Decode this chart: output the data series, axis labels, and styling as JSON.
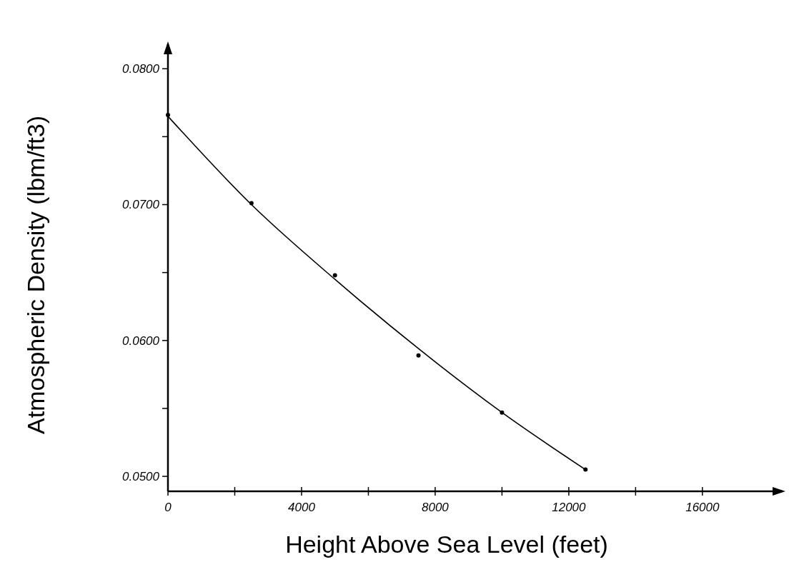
{
  "chart_data": {
    "type": "scatter",
    "xlabel": "Height Above Sea Level (feet)",
    "ylabel": "Atmospheric Density (lbm/ft3)",
    "xlim": [
      0,
      18400
    ],
    "ylim": [
      0.0489,
      0.0818
    ],
    "xticks": [
      0,
      {
        "value": 2000,
        "label": null
      },
      4000,
      {
        "value": 6000,
        "label": null
      },
      8000,
      {
        "value": 10000,
        "label": null
      },
      12000,
      {
        "value": 14000,
        "label": null
      },
      16000
    ],
    "yticks": [
      {
        "value": 0.05,
        "label": "0.0500"
      },
      {
        "value": 0.055,
        "label": null
      },
      {
        "value": 0.06,
        "label": "0.0600"
      },
      {
        "value": 0.065,
        "label": null
      },
      {
        "value": 0.07,
        "label": "0.0700"
      },
      {
        "value": 0.075,
        "label": null
      },
      {
        "value": 0.08,
        "label": "0.0800"
      }
    ],
    "grid": false,
    "marker": "circle",
    "series": [
      {
        "color": "#000000",
        "x": [
          0,
          2500,
          5000,
          7500,
          10000,
          12500
        ],
        "values": [
          0.0766,
          0.0701,
          0.0648,
          0.0589,
          0.0547,
          0.0505
        ]
      },
      {
        "type": "line",
        "color": "#000000",
        "marker": "none",
        "line_style": "solid",
        "x": [
          0,
          2500,
          5000,
          7500,
          10000,
          12500
        ],
        "values": [
          0.0765,
          0.07,
          0.0645,
          0.0594,
          0.0547,
          0.0505
        ]
      }
    ]
  }
}
